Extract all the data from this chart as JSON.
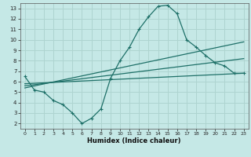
{
  "title": "",
  "xlabel": "Humidex (Indice chaleur)",
  "ylabel": "",
  "bg_color": "#c5e8e6",
  "grid_color": "#aed4d0",
  "line_color": "#1e7068",
  "xlim": [
    -0.5,
    23.5
  ],
  "ylim": [
    1.5,
    13.5
  ],
  "xticks": [
    0,
    1,
    2,
    3,
    4,
    5,
    6,
    7,
    8,
    9,
    10,
    11,
    12,
    13,
    14,
    15,
    16,
    17,
    18,
    19,
    20,
    21,
    22,
    23
  ],
  "yticks": [
    2,
    3,
    4,
    5,
    6,
    7,
    8,
    9,
    10,
    11,
    12,
    13
  ],
  "curve_x": [
    0,
    1,
    2,
    3,
    4,
    5,
    6,
    7,
    8,
    9,
    10,
    11,
    12,
    13,
    14,
    15,
    16,
    17,
    18,
    19,
    20,
    21,
    22,
    23
  ],
  "curve_y": [
    6.5,
    5.2,
    5.0,
    4.2,
    3.8,
    3.0,
    2.0,
    2.5,
    3.4,
    6.3,
    8.0,
    9.3,
    11.0,
    12.2,
    13.2,
    13.3,
    12.5,
    10.0,
    9.3,
    8.5,
    7.8,
    7.5,
    6.8,
    6.8
  ],
  "line2_x": [
    0,
    23
  ],
  "line2_y": [
    5.8,
    6.8
  ],
  "line3_x": [
    0,
    23
  ],
  "line3_y": [
    5.6,
    8.2
  ],
  "line4_x": [
    0,
    23
  ],
  "line4_y": [
    5.4,
    9.8
  ]
}
